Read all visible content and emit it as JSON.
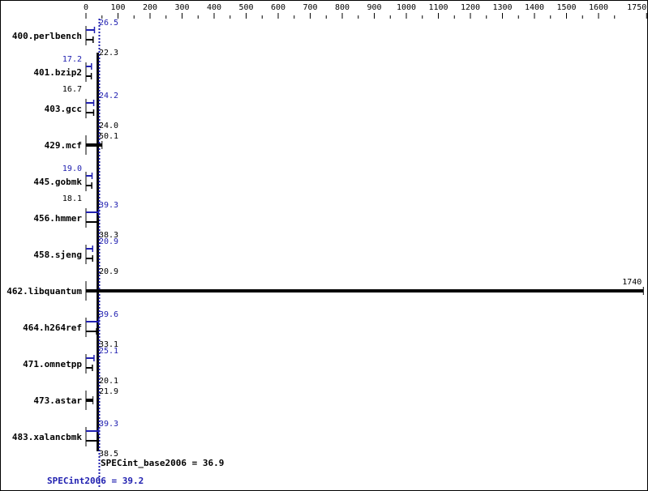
{
  "chart_data": {
    "type": "bar",
    "orientation": "horizontal",
    "xlim": [
      0,
      1750
    ],
    "x_ticks": [
      0,
      100,
      200,
      300,
      400,
      500,
      600,
      700,
      800,
      900,
      1000,
      1100,
      1200,
      1300,
      1400,
      1500,
      1600,
      1750
    ],
    "grid": false,
    "colors": {
      "base": "#000000",
      "peak": "#2020b0"
    },
    "categories": [
      "400.perlbench",
      "401.bzip2",
      "403.gcc",
      "429.mcf",
      "445.gobmk",
      "456.hmmer",
      "458.sjeng",
      "462.libquantum",
      "464.h264ref",
      "471.omnetpp",
      "473.astar",
      "483.xalancbmk"
    ],
    "series": [
      {
        "key": "base",
        "values": [
          22.3,
          16.7,
          24.0,
          50.1,
          18.1,
          38.3,
          20.9,
          1740,
          33.1,
          20.1,
          21.9,
          38.5
        ]
      },
      {
        "key": "peak",
        "values": [
          26.5,
          17.2,
          24.2,
          null,
          19.0,
          39.3,
          20.9,
          null,
          39.6,
          25.1,
          null,
          39.3
        ]
      }
    ],
    "value_labels": {
      "base": [
        "22.3",
        "16.7",
        "24.0",
        "50.1",
        "18.1",
        "38.3",
        "20.9",
        "1740",
        "33.1",
        "20.1",
        "21.9",
        "38.5"
      ],
      "peak": [
        "26.5",
        "17.2",
        "24.2",
        "",
        "19.0",
        "39.3",
        "20.9",
        "",
        "39.6",
        "25.1",
        "",
        "39.3"
      ]
    },
    "reference_lines": [
      {
        "key": "base",
        "value": 36.9,
        "label": "SPECint_base2006 = 36.9"
      },
      {
        "key": "peak",
        "value": 39.2,
        "label": "SPECint2006 = 39.2"
      }
    ]
  }
}
